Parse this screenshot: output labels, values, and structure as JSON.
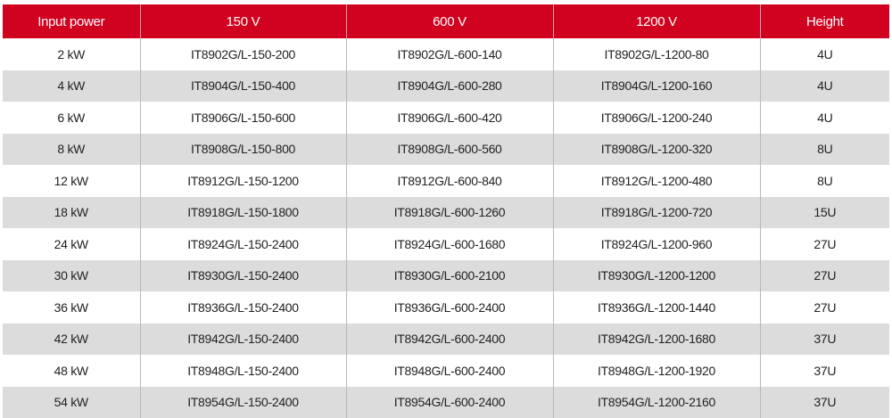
{
  "colors": {
    "header_bg": "#d0021f",
    "alt_row_bg": "#dcdcdc"
  },
  "headers": [
    "Input power",
    "150 V",
    "600 V",
    "1200 V",
    "Height"
  ],
  "rows": [
    [
      "2 kW",
      "IT8902G/L-150-200",
      "IT8902G/L-600-140",
      "IT8902G/L-1200-80",
      "4U"
    ],
    [
      "4 kW",
      "IT8904G/L-150-400",
      "IT8904G/L-600-280",
      "IT8904G/L-1200-160",
      "4U"
    ],
    [
      "6 kW",
      "IT8906G/L-150-600",
      "IT8906G/L-600-420",
      "IT8906G/L-1200-240",
      "4U"
    ],
    [
      "8 kW",
      "IT8908G/L-150-800",
      "IT8908G/L-600-560",
      "IT8908G/L-1200-320",
      "8U"
    ],
    [
      "12 kW",
      "IT8912G/L-150-1200",
      "IT8912G/L-600-840",
      "IT8912G/L-1200-480",
      "8U"
    ],
    [
      "18 kW",
      "IT8918G/L-150-1800",
      "IT8918G/L-600-1260",
      "IT8918G/L-1200-720",
      "15U"
    ],
    [
      "24 kW",
      "IT8924G/L-150-2400",
      "IT8924G/L-600-1680",
      "IT8924G/L-1200-960",
      "27U"
    ],
    [
      "30 kW",
      "IT8930G/L-150-2400",
      "IT8930G/L-600-2100",
      "IT8930G/L-1200-1200",
      "27U"
    ],
    [
      "36 kW",
      "IT8936G/L-150-2400",
      "IT8936G/L-600-2400",
      "IT8936G/L-1200-1440",
      "27U"
    ],
    [
      "42 kW",
      "IT8942G/L-150-2400",
      "IT8942G/L-600-2400",
      "IT8942G/L-1200-1680",
      "37U"
    ],
    [
      "48 kW",
      "IT8948G/L-150-2400",
      "IT8948G/L-600-2400",
      "IT8948G/L-1200-1920",
      "37U"
    ],
    [
      "54 kW",
      "IT8954G/L-150-2400",
      "IT8954G/L-600-2400",
      "IT8954G/L-1200-2160",
      "37U"
    ]
  ]
}
